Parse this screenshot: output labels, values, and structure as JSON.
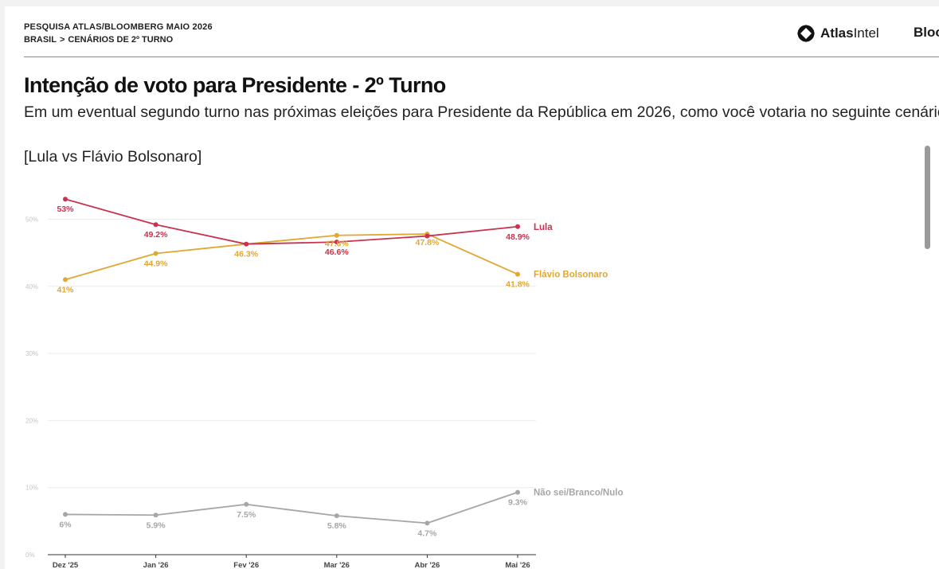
{
  "header": {
    "survey_title": "PESQUISA ATLAS/BLOOMBERG MAIO 2026",
    "breadcrumb": [
      "BRASIL",
      "CENÁRIOS DE 2º TURNO"
    ],
    "breadcrumb_separator": ">",
    "brand_name_bold": "Atlas",
    "brand_name_rest": "Intel",
    "partner": "Bloo",
    "logo_icon": "atlasintel-logo-icon"
  },
  "chart_data": {
    "type": "line",
    "title": "Intenção de voto para Presidente - 2º Turno",
    "subtitle": "Em um eventual segundo turno nas próximas eleições para Presidente da República em 2026, como você votaria no seguinte cenário?",
    "scenario": "[Lula vs Flávio Bolsonaro]",
    "categories": [
      "Dez '25",
      "Jan '26",
      "Fev '26",
      "Mar '26",
      "Abr '26",
      "Mai '26"
    ],
    "ylim": [
      0,
      55
    ],
    "yticks": [
      0,
      10,
      20,
      30,
      40,
      50
    ],
    "ytick_labels": [
      "0%",
      "10%",
      "20%",
      "30%",
      "40%",
      "50%"
    ],
    "grid": true,
    "legend": "end-of-line labels",
    "series": [
      {
        "name": "Lula",
        "color": "#c8334f",
        "values": [
          53,
          49.2,
          46.3,
          46.6,
          47.5,
          48.9
        ],
        "labels": [
          "53%",
          "49.2%",
          "",
          "46.6%",
          "",
          "48.9%"
        ],
        "label_pos": [
          "below",
          "below",
          "none",
          "below",
          "none",
          "below"
        ]
      },
      {
        "name": "Flávio Bolsonaro",
        "color": "#e0a830",
        "values": [
          41,
          44.9,
          46.3,
          47.6,
          47.8,
          41.8
        ],
        "labels": [
          "41%",
          "44.9%",
          "46.3%",
          "47.6%",
          "47.8%",
          "41.8%"
        ],
        "label_pos": [
          "below",
          "below",
          "below",
          "below-tight",
          "below-tight",
          "below"
        ]
      },
      {
        "name": "Não sei/Branco/Nulo",
        "color": "#a6a6a6",
        "values": [
          6,
          5.9,
          7.5,
          5.8,
          4.7,
          9.3
        ],
        "labels": [
          "6%",
          "5.9%",
          "7.5%",
          "5.8%",
          "4.7%",
          "9.3%"
        ],
        "label_pos": [
          "below",
          "below",
          "below",
          "below",
          "below",
          "below"
        ]
      }
    ]
  }
}
